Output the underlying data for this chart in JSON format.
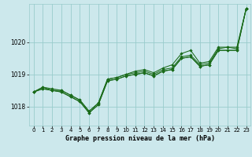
{
  "title": "Graphe pression niveau de la mer (hPa)",
  "bg_color": "#cce8ec",
  "grid_color": "#99cccc",
  "line_color": "#1a6b1a",
  "marker_color": "#1a6b1a",
  "xlim": [
    -0.5,
    23.5
  ],
  "ylim": [
    1017.4,
    1021.2
  ],
  "yticks": [
    1018,
    1019,
    1020
  ],
  "xticks": [
    0,
    1,
    2,
    3,
    4,
    5,
    6,
    7,
    8,
    9,
    10,
    11,
    12,
    13,
    14,
    15,
    16,
    17,
    18,
    19,
    20,
    21,
    22,
    23
  ],
  "series": [
    [
      1018.45,
      1018.6,
      1018.55,
      1018.5,
      1018.35,
      1018.2,
      1017.85,
      1018.1,
      1018.85,
      1018.9,
      1019.0,
      1019.05,
      1019.1,
      1019.0,
      1019.15,
      1019.2,
      1019.55,
      1019.6,
      1019.3,
      1019.35,
      1019.8,
      1019.85,
      1019.85,
      1021.05
    ],
    [
      1018.45,
      1018.6,
      1018.5,
      1018.5,
      1018.35,
      1018.2,
      1017.85,
      1018.1,
      1018.85,
      1018.9,
      1019.0,
      1019.1,
      1019.15,
      1019.05,
      1019.2,
      1019.3,
      1019.65,
      1019.75,
      1019.35,
      1019.4,
      1019.85,
      1019.85,
      1019.8,
      1021.05
    ],
    [
      1018.45,
      1018.55,
      1018.5,
      1018.45,
      1018.3,
      1018.15,
      1017.8,
      1018.05,
      1018.8,
      1018.85,
      1018.95,
      1019.0,
      1019.05,
      1018.95,
      1019.1,
      1019.15,
      1019.5,
      1019.55,
      1019.25,
      1019.3,
      1019.75,
      1019.75,
      1019.75,
      1021.05
    ],
    [
      1018.45,
      1018.55,
      1018.5,
      1018.45,
      1018.3,
      1018.15,
      1017.8,
      1018.05,
      1018.8,
      1018.85,
      1018.95,
      1019.0,
      1019.05,
      1018.95,
      1019.1,
      1019.15,
      1019.5,
      1019.55,
      1019.25,
      1019.3,
      1019.75,
      1019.75,
      1019.75,
      1021.05
    ]
  ]
}
